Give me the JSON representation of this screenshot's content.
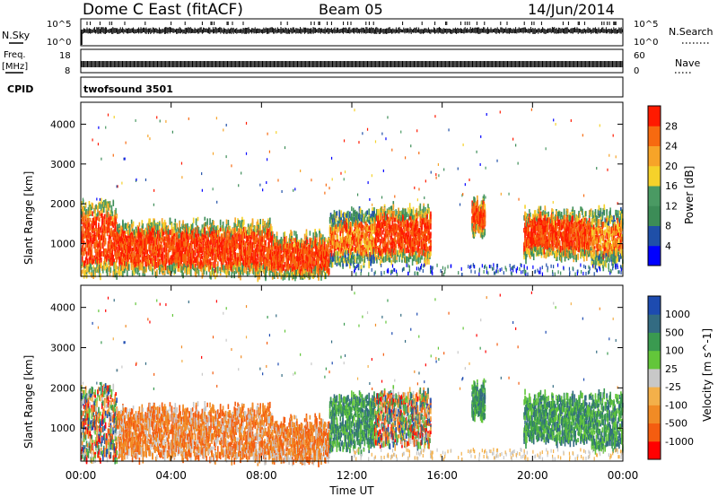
{
  "header": {
    "station": "Dome C East (fitACF)",
    "beam": "Beam 05",
    "date": "14/Jun/2014"
  },
  "aux": {
    "nsky_label": "N.Sky",
    "nsky_top": "10^5",
    "nsky_bottom": "10^0",
    "nsearch_label": "N.Search",
    "nsearch_top": "10^5",
    "nsearch_bottom": "10^0",
    "freq_label": "Freq.",
    "freq_unit": "[MHz]",
    "freq_top": "18",
    "freq_bottom": "8",
    "nave_label": "Nave",
    "nave_top": "60",
    "nave_bottom": "0",
    "cpid_label": "CPID",
    "cpid_value": "twofsound 3501"
  },
  "x_axis": {
    "label": "Time UT",
    "ticks": [
      "00:00",
      "04:00",
      "08:00",
      "12:00",
      "16:00",
      "20:00",
      "00:00"
    ]
  },
  "colors": {
    "power": [
      "#0000ff",
      "#1f4fa8",
      "#3c8c57",
      "#4a9a63",
      "#f5d22a",
      "#f7a428",
      "#f76a10",
      "#ff1a00"
    ],
    "velocity": [
      "#ff0000",
      "#f45d10",
      "#f18b25",
      "#f3b04a",
      "#c8c8c8",
      "#63c63a",
      "#3a9a50",
      "#336b82",
      "#1d4bb0"
    ]
  },
  "chart_data": [
    {
      "type": "heatmap",
      "title": "Power",
      "ylabel": "Slant Range [km]",
      "xlabel": "",
      "ylim": [
        180,
        4550
      ],
      "yticks": [
        "1000",
        "2000",
        "3000",
        "4000"
      ],
      "colorbar": {
        "label": "Power [dB]",
        "ticks": [
          "4",
          "8",
          "12",
          "16",
          "20",
          "24",
          "28"
        ],
        "range": [
          0,
          32
        ]
      },
      "scatter_bands": [
        {
          "t_start": 0.0,
          "t_end": 1.6,
          "range_low": 250,
          "range_high": 2000,
          "level": "high"
        },
        {
          "t_start": 1.6,
          "t_end": 4.5,
          "range_low": 300,
          "range_high": 1500,
          "level": "high"
        },
        {
          "t_start": 4.5,
          "t_end": 8.5,
          "range_low": 250,
          "range_high": 1500,
          "level": "high"
        },
        {
          "t_start": 8.5,
          "t_end": 11.0,
          "range_low": 200,
          "range_high": 1200,
          "level": "high"
        },
        {
          "t_start": 11.0,
          "t_end": 13.0,
          "range_low": 500,
          "range_high": 1800,
          "level": "mixed"
        },
        {
          "t_start": 13.0,
          "t_end": 15.5,
          "range_low": 600,
          "range_high": 1900,
          "level": "high"
        },
        {
          "t_start": 17.3,
          "t_end": 17.9,
          "range_low": 1300,
          "range_high": 2100,
          "level": "high"
        },
        {
          "t_start": 19.6,
          "t_end": 22.6,
          "range_low": 700,
          "range_high": 1800,
          "level": "high"
        },
        {
          "t_start": 22.6,
          "t_end": 24.0,
          "range_low": 500,
          "range_high": 1800,
          "level": "mixed"
        }
      ]
    },
    {
      "type": "heatmap",
      "title": "Velocity",
      "ylabel": "Slant Range [km]",
      "xlabel": "Time UT",
      "ylim": [
        180,
        4550
      ],
      "yticks": [
        "1000",
        "2000",
        "3000",
        "4000"
      ],
      "colorbar": {
        "label": "Velocity [m s^-1]",
        "ticks": [
          "-1000",
          "-500",
          "-100",
          "-25",
          "25",
          "100",
          "500",
          "1000"
        ],
        "range": [
          -2000,
          2000
        ]
      },
      "scatter_bands": [
        {
          "t_start": 0.0,
          "t_end": 1.6,
          "range_low": 250,
          "range_high": 2000,
          "velocity": "mixed"
        },
        {
          "t_start": 1.6,
          "t_end": 4.5,
          "range_low": 300,
          "range_high": 1500,
          "velocity": "negative"
        },
        {
          "t_start": 4.5,
          "t_end": 8.5,
          "range_low": 250,
          "range_high": 1500,
          "velocity": "negative"
        },
        {
          "t_start": 8.5,
          "t_end": 11.0,
          "range_low": 200,
          "range_high": 1200,
          "velocity": "negative"
        },
        {
          "t_start": 11.0,
          "t_end": 13.0,
          "range_low": 500,
          "range_high": 1800,
          "velocity": "positive"
        },
        {
          "t_start": 13.0,
          "t_end": 15.5,
          "range_low": 600,
          "range_high": 1900,
          "velocity": "mixed"
        },
        {
          "t_start": 17.3,
          "t_end": 17.9,
          "range_low": 1300,
          "range_high": 2100,
          "velocity": "positive"
        },
        {
          "t_start": 19.6,
          "t_end": 22.6,
          "range_low": 700,
          "range_high": 1800,
          "velocity": "positive"
        },
        {
          "t_start": 22.6,
          "t_end": 24.0,
          "range_low": 500,
          "range_high": 1800,
          "velocity": "positive"
        }
      ]
    }
  ]
}
